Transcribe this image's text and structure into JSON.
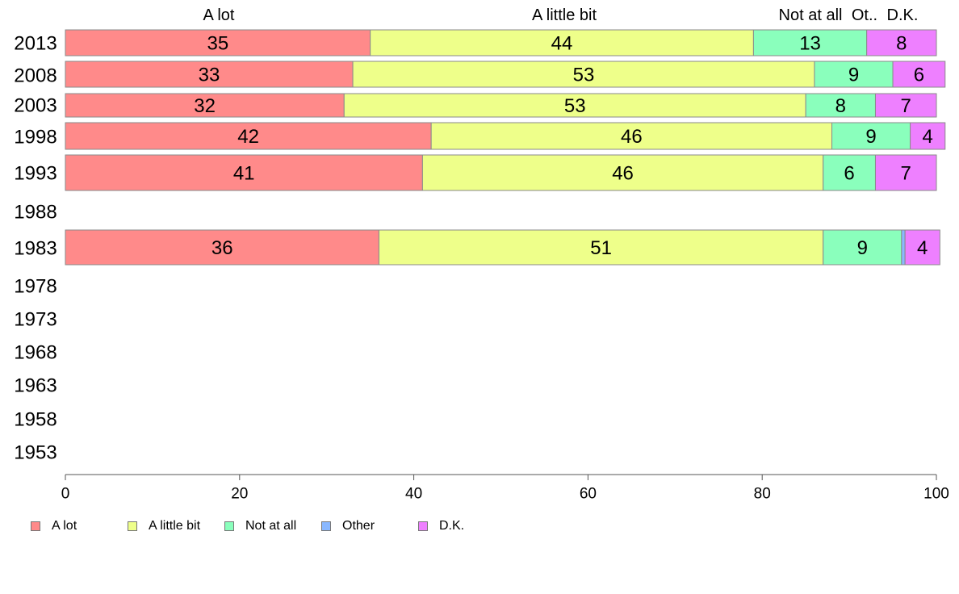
{
  "chart_data": {
    "type": "bar",
    "orientation": "horizontal",
    "stacked": true,
    "categories": [
      "2013",
      "2008",
      "2003",
      "1998",
      "1993",
      "1988",
      "1983",
      "1978",
      "1973",
      "1968",
      "1963",
      "1958",
      "1953"
    ],
    "series": [
      {
        "name": "A lot",
        "color": "#ff8a8a",
        "values": [
          35,
          33,
          32,
          42,
          41,
          null,
          36,
          null,
          null,
          null,
          null,
          null,
          null
        ]
      },
      {
        "name": "A little bit",
        "color": "#eeff8a",
        "values": [
          44,
          53,
          53,
          46,
          46,
          null,
          51,
          null,
          null,
          null,
          null,
          null,
          null
        ]
      },
      {
        "name": "Not at all",
        "color": "#8affbc",
        "values": [
          13,
          9,
          8,
          9,
          6,
          null,
          9,
          null,
          null,
          null,
          null,
          null,
          null
        ]
      },
      {
        "name": "Other",
        "color": "#8ab8ff",
        "values": [
          0,
          0,
          0,
          0,
          0,
          null,
          0.4,
          null,
          null,
          null,
          null,
          null,
          null
        ]
      },
      {
        "name": "D.K.",
        "color": "#ee80ff",
        "values": [
          8,
          6,
          7,
          4,
          7,
          null,
          4,
          null,
          null,
          null,
          null,
          null,
          null
        ]
      }
    ],
    "data_labels": [
      [
        "35",
        "44",
        "13",
        "",
        "8"
      ],
      [
        "33",
        "53",
        "9",
        "",
        "6"
      ],
      [
        "32",
        "53",
        "8",
        "",
        "7"
      ],
      [
        "42",
        "46",
        "9",
        "",
        "4"
      ],
      [
        "41",
        "46",
        "6",
        "",
        "7"
      ],
      null,
      [
        "36",
        "51",
        "9",
        "",
        "4"
      ],
      null,
      null,
      null,
      null,
      null,
      null
    ],
    "top_labels": [
      "A lot",
      "A little bit",
      "Not at all",
      "Ot..",
      "D.K."
    ],
    "xticks": [
      "0",
      "20",
      "40",
      "60",
      "80",
      "100"
    ],
    "xlim": [
      0,
      100
    ],
    "legend_position": "bottom-left",
    "grid": false
  }
}
